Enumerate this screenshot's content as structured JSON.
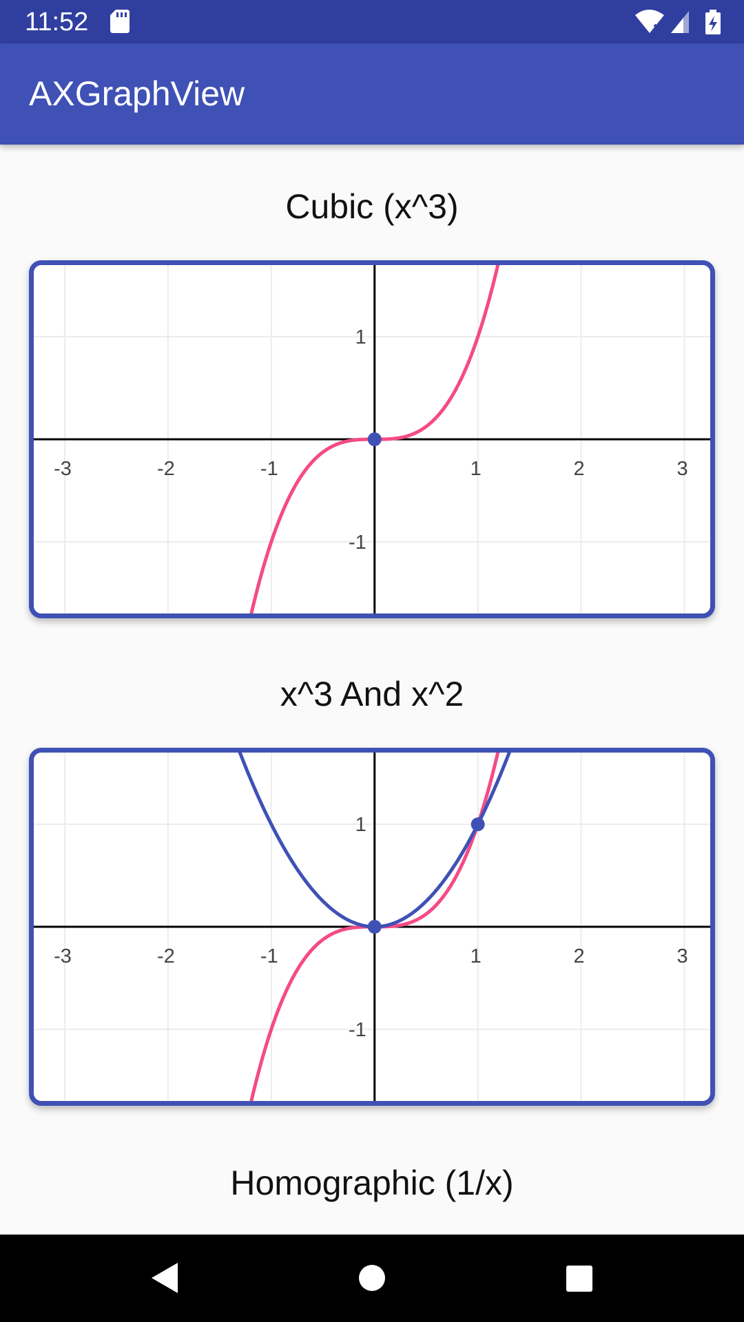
{
  "status_bar": {
    "time": "11:52",
    "icons": [
      "sd-card-icon",
      "wifi-icon",
      "signal-icon",
      "battery-charging-icon"
    ]
  },
  "app_bar": {
    "title": "AXGraphView"
  },
  "colors": {
    "primary": "#3f51b5",
    "primary_dark": "#303f9f",
    "pink_curve": "#f44b85",
    "blue_curve": "#3f51b5",
    "grid": "#ececec",
    "axis": "#000000"
  },
  "graphs": [
    {
      "title": "Cubic (x^3)",
      "chart_data": {
        "type": "line",
        "xlim": [
          -3.3,
          3.25
        ],
        "ylim": [
          -1.7,
          1.7
        ],
        "grid": true,
        "x_ticks": [
          -3,
          -2,
          -1,
          1,
          2,
          3
        ],
        "y_ticks": [
          1,
          -1
        ],
        "series": [
          {
            "formula": "x^3",
            "color": "#f44b85"
          }
        ],
        "points": [
          {
            "x": 0,
            "y": 0,
            "color": "#3f51b5"
          }
        ]
      }
    },
    {
      "title": "x^3 And x^2",
      "chart_data": {
        "type": "line",
        "xlim": [
          -3.3,
          3.25
        ],
        "ylim": [
          -1.7,
          1.7
        ],
        "grid": true,
        "x_ticks": [
          -3,
          -2,
          -1,
          1,
          2,
          3
        ],
        "y_ticks": [
          1,
          -1
        ],
        "series": [
          {
            "formula": "x^3",
            "color": "#f44b85"
          },
          {
            "formula": "x^2",
            "color": "#3f51b5"
          }
        ],
        "points": [
          {
            "x": 0,
            "y": 0,
            "color": "#3f51b5"
          },
          {
            "x": 1,
            "y": 1,
            "color": "#3f51b5"
          }
        ]
      }
    },
    {
      "title": "Homographic (1/x)"
    }
  ],
  "nav_bar": {
    "buttons": [
      "back-icon",
      "home-icon",
      "recents-icon"
    ]
  }
}
